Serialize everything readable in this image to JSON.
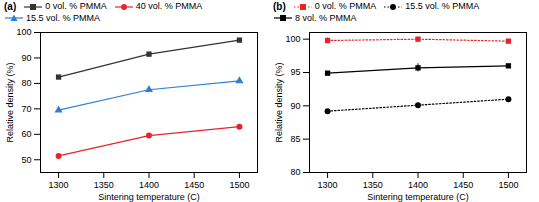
{
  "chart_data": [
    {
      "type": "line",
      "title": "(a)",
      "x_label": "Sintering temperature (C)",
      "y_label": "Relative density (%)",
      "x": [
        1300,
        1400,
        1500
      ],
      "xlim": [
        1280,
        1520
      ],
      "xticks": [
        1300,
        1350,
        1400,
        1450,
        1500
      ],
      "ylim": [
        45,
        100
      ],
      "yticks": [
        50,
        60,
        70,
        80,
        90,
        100
      ],
      "legend": "top",
      "series": [
        {
          "name": "0 vol. % PMMA",
          "color": "#333333",
          "marker": "square",
          "line_style": "solid",
          "values": [
            82.5,
            91.5,
            97
          ],
          "errors": [
            0.3,
            0.3,
            0.3
          ]
        },
        {
          "name": "40 vol. % PMMA",
          "color": "#e8242b",
          "marker": "circle",
          "line_style": "solid",
          "values": [
            51.5,
            59.5,
            63
          ],
          "errors": [
            0.5,
            0.8,
            0.5
          ]
        },
        {
          "name": "15.5 vol. % PMMA",
          "color": "#2f7fd8",
          "marker": "triangle",
          "line_style": "solid",
          "values": [
            69.5,
            77.5,
            81
          ],
          "errors": [
            0.7,
            0.5,
            0.8
          ]
        }
      ]
    },
    {
      "type": "line",
      "title": "(b)",
      "x_label": "Sintering temperature (C)",
      "y_label": "Relative density (%)",
      "x": [
        1300,
        1400,
        1500
      ],
      "xlim": [
        1280,
        1520
      ],
      "xticks": [
        1300,
        1350,
        1400,
        1450,
        1500
      ],
      "ylim": [
        80,
        101
      ],
      "yticks": [
        80,
        85,
        90,
        95,
        100
      ],
      "legend": "top",
      "series": [
        {
          "name": "0 vol. % PMMA",
          "color": "#e8242b",
          "marker": "square",
          "line_style": "dotted",
          "values": [
            99.8,
            100,
            99.7
          ],
          "errors": [
            0.4,
            0.2,
            0.2
          ]
        },
        {
          "name": "15.5 vol. % PMMA",
          "color": "#000000",
          "marker": "circle",
          "line_style": "dotted",
          "values": [
            89.2,
            90.1,
            91
          ],
          "errors": [
            0.1,
            0.1,
            0.1
          ]
        },
        {
          "name": "8 vol. % PMMA",
          "color": "#000000",
          "marker": "square",
          "line_style": "solid",
          "values": [
            94.9,
            95.7,
            96
          ],
          "errors": [
            0.1,
            0.6,
            0.2
          ]
        }
      ]
    }
  ]
}
